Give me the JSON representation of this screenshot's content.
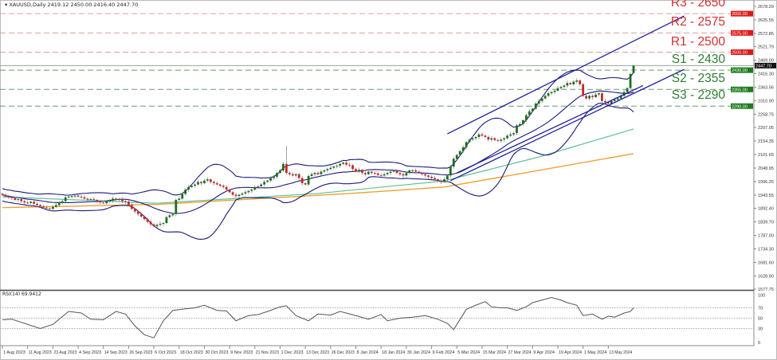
{
  "header": {
    "symbol": "XAUUSD,Daily",
    "open": "2419.12",
    "high": "2450.00",
    "low": "2416.40",
    "close": "2447.70"
  },
  "colors": {
    "bull": "#1e6e1e",
    "bear": "#c62828",
    "resistance": "#d32f2f",
    "support": "#2e7d32",
    "bollinger": "#1a1a7a",
    "ma_fast": "#5fbf9a",
    "ma_slow": "#f0a030",
    "channel": "#1f1f9a",
    "rsi": "#555555"
  },
  "levels": [
    {
      "label": "R3 - 2650",
      "value": 2650,
      "badge": "2650.00",
      "type": "resistance"
    },
    {
      "label": "R2 - 2575",
      "value": 2575,
      "badge": "2575.00",
      "type": "resistance"
    },
    {
      "label": "R1 - 2500",
      "value": 2500,
      "badge": "2500.00",
      "type": "resistance"
    },
    {
      "label": "S1 - 2430",
      "value": 2430,
      "badge": "2430.00",
      "type": "support"
    },
    {
      "label": "S2 - 2355",
      "value": 2355,
      "badge": "2355.00",
      "type": "support"
    },
    {
      "label": "S3 - 2290",
      "value": 2290,
      "badge": "2290.00",
      "type": "support"
    }
  ],
  "current_price": {
    "value": 2447.7,
    "badge": "2447.70"
  },
  "chart_data": {
    "type": "candlestick",
    "title": "XAUUSD,Daily",
    "ylim": [
      1577.75,
      2678.29
    ],
    "y_ticks": [
      "2678.29",
      "2625.55",
      "2572.85",
      "2521.79",
      "2469.00",
      "2416.30",
      "2363.56",
      "2310.90",
      "2258.75",
      "2207.05",
      "2154.35",
      "2101.65",
      "2048.95",
      "1996.25",
      "1943.55",
      "1892.40",
      "1839.70",
      "1787.00",
      "1734.30",
      "1681.60",
      "1628.90",
      "1577.75"
    ],
    "x_labels": [
      "1 Aug 2023",
      "11 Aug 2023",
      "23 Aug 2023",
      "4 Sep 2023",
      "14 Sep 2023",
      "26 Sep 2023",
      "6 Oct 2023",
      "18 Oct 2023",
      "30 Oct 2023",
      "9 Nov 2023",
      "21 Nov 2023",
      "1 Dec 2023",
      "13 Dec 2023",
      "26 Dec 2023",
      "8 Jan 2024",
      "18 Jan 2024",
      "30 Jan 2024",
      "9 Feb 2024",
      "5 Mar 2024",
      "15 Mar 2024",
      "27 Mar 2024",
      "9 Apr 2024",
      "19 Apr 2024",
      "1 May 2024",
      "13 May 2024"
    ],
    "closes": [
      1945,
      1938,
      1935,
      1932,
      1925,
      1928,
      1920,
      1915,
      1913,
      1918,
      1910,
      1905,
      1900,
      1895,
      1892,
      1890,
      1898,
      1905,
      1915,
      1920,
      1935,
      1938,
      1940,
      1942,
      1938,
      1935,
      1930,
      1926,
      1928,
      1925,
      1920,
      1915,
      1912,
      1920,
      1922,
      1930,
      1925,
      1928,
      1920,
      1918,
      1905,
      1890,
      1880,
      1870,
      1860,
      1850,
      1840,
      1830,
      1822,
      1828,
      1832,
      1835,
      1858,
      1865,
      1870,
      1925,
      1930,
      1948,
      1965,
      1975,
      1980,
      1985,
      1995,
      1990,
      2000,
      2005,
      1995,
      1990,
      1985,
      1980,
      1975,
      1965,
      1955,
      1945,
      1940,
      1945,
      1950,
      1955,
      1960,
      1965,
      1975,
      1978,
      1985,
      1995,
      2000,
      2010,
      2015,
      2030,
      2040,
      2065,
      2030,
      2025,
      2020,
      2025,
      2010,
      1990,
      1985,
      2018,
      2025,
      2030,
      2025,
      2035,
      2040,
      2045,
      2050,
      2055,
      2058,
      2065,
      2070,
      2062,
      2060,
      2045,
      2035,
      2042,
      2030,
      2025,
      2035,
      2030,
      2028,
      2022,
      2020,
      2025,
      2030,
      2035,
      2038,
      2030,
      2025,
      2020,
      2030,
      2040,
      2040,
      2035,
      2030,
      2025,
      2020,
      2015,
      2010,
      2005,
      2000,
      1995,
      2005,
      2020,
      2055,
      2085,
      2100,
      2115,
      2130,
      2150,
      2160,
      2165,
      2170,
      2180,
      2175,
      2170,
      2160,
      2165,
      2158,
      2155,
      2160,
      2165,
      2175,
      2180,
      2185,
      2215,
      2220,
      2235,
      2255,
      2270,
      2280,
      2300,
      2310,
      2320,
      2330,
      2340,
      2345,
      2350,
      2360,
      2365,
      2370,
      2380,
      2375,
      2385,
      2390,
      2375,
      2330,
      2320,
      2330,
      2325,
      2335,
      2340,
      2310,
      2305,
      2300,
      2310,
      2315,
      2320,
      2330,
      2345,
      2360,
      2415,
      2447.7
    ],
    "last_candle": {
      "open": 2419.12,
      "high": 2450.0,
      "low": 2416.4,
      "close": 2447.7
    },
    "spike_high": {
      "bar": 90,
      "value": 2135
    },
    "bollinger": {
      "period": 20,
      "deviations": 2
    },
    "ma_fast_points": [
      [
        0,
        1937
      ],
      [
        49,
        1912
      ],
      [
        100,
        1950
      ],
      [
        140,
        1999
      ],
      [
        170,
        2092
      ],
      [
        200,
        2201
      ]
    ],
    "ma_slow_points": [
      [
        0,
        1895
      ],
      [
        50,
        1908
      ],
      [
        110,
        1950
      ],
      [
        140,
        1975
      ],
      [
        200,
        2105
      ]
    ],
    "trendlines": [
      {
        "name": "channel-upper",
        "from": [
          141,
          2182
        ],
        "to": [
          216,
          2641
        ]
      },
      {
        "name": "channel-lower",
        "from": [
          142,
          2000
        ],
        "to": [
          216,
          2433
        ]
      },
      {
        "name": "support-line",
        "from": [
          144,
          2030
        ],
        "to": [
          203,
          2370
        ]
      }
    ],
    "rsi": {
      "label": "RSI(14) 69.9412",
      "ylim": [
        0,
        100
      ],
      "levels": [
        70,
        50,
        30
      ],
      "tick_labels": [
        "100",
        "70",
        "50",
        "30",
        "0"
      ],
      "points": [
        [
          0,
          47
        ],
        [
          3,
          48
        ],
        [
          12,
          30
        ],
        [
          16,
          38
        ],
        [
          21,
          63
        ],
        [
          25,
          60
        ],
        [
          28,
          48
        ],
        [
          32,
          47
        ],
        [
          36,
          63
        ],
        [
          39,
          58
        ],
        [
          42,
          35
        ],
        [
          45,
          18
        ],
        [
          48,
          12
        ],
        [
          51,
          45
        ],
        [
          54,
          65
        ],
        [
          58,
          68
        ],
        [
          61,
          70
        ],
        [
          64,
          75
        ],
        [
          68,
          65
        ],
        [
          71,
          64
        ],
        [
          74,
          45
        ],
        [
          78,
          55
        ],
        [
          81,
          57
        ],
        [
          85,
          65
        ],
        [
          88,
          72
        ],
        [
          90,
          74
        ],
        [
          93,
          55
        ],
        [
          97,
          45
        ],
        [
          100,
          58
        ],
        [
          104,
          56
        ],
        [
          107,
          63
        ],
        [
          112,
          55
        ],
        [
          116,
          48
        ],
        [
          120,
          57
        ],
        [
          122,
          45
        ],
        [
          126,
          50
        ],
        [
          130,
          52
        ],
        [
          134,
          55
        ],
        [
          138,
          48
        ],
        [
          141,
          40
        ],
        [
          143,
          28
        ],
        [
          147,
          67
        ],
        [
          150,
          75
        ],
        [
          153,
          82
        ],
        [
          155,
          72
        ],
        [
          158,
          70
        ],
        [
          160,
          70
        ],
        [
          163,
          65
        ],
        [
          166,
          72
        ],
        [
          168,
          80
        ],
        [
          171,
          85
        ],
        [
          174,
          90
        ],
        [
          177,
          85
        ],
        [
          179,
          80
        ],
        [
          182,
          75
        ],
        [
          184,
          55
        ],
        [
          187,
          58
        ],
        [
          190,
          48
        ],
        [
          192,
          54
        ],
        [
          194,
          52
        ],
        [
          197,
          60
        ],
        [
          199,
          63
        ],
        [
          200,
          70
        ]
      ]
    }
  }
}
